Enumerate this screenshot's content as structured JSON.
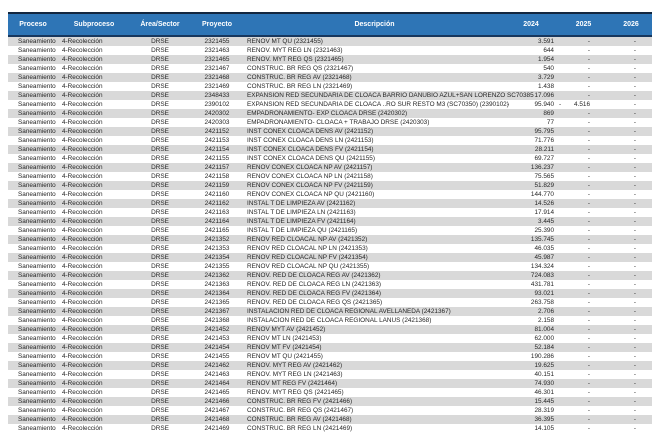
{
  "colors": {
    "header_bg": "#2E75B6",
    "header_text": "#FFFFFF",
    "stripe": "#D9D9D9",
    "row_text": "#262626",
    "top_border": "#12263F",
    "header_bottom_border": "#17375E"
  },
  "table": {
    "columns": {
      "proceso": "Proceso",
      "subproceso": "Subproceso",
      "area": "Área/Sector",
      "proyecto": "Proyecto",
      "descripcion": "Descripción",
      "y2024": "2024",
      "y2025": "2025",
      "y2026": "2026"
    },
    "rows": [
      {
        "proceso": "Saneamiento",
        "subproceso": "4-Recolección",
        "area": "DRSE",
        "proyecto": "2321455",
        "descripcion": "RENOV MT  QU (2321455)",
        "y2024": "3.591",
        "y2025": "-",
        "y2026": "-"
      },
      {
        "proceso": "Saneamiento",
        "subproceso": "4-Recolección",
        "area": "DRSE",
        "proyecto": "2321463",
        "descripcion": "RENOV. MYT REG LN (2321463)",
        "y2024": "644",
        "y2025": "-",
        "y2026": "-"
      },
      {
        "proceso": "Saneamiento",
        "subproceso": "4-Recolección",
        "area": "DRSE",
        "proyecto": "2321465",
        "descripcion": "RENOV. MYT REG QS (2321465)",
        "y2024": "1.954",
        "y2025": "-",
        "y2026": "-"
      },
      {
        "proceso": "Saneamiento",
        "subproceso": "4-Recolección",
        "area": "DRSE",
        "proyecto": "2321467",
        "descripcion": "CONSTRUC. BR REG QS (2321467)",
        "y2024": "540",
        "y2025": "-",
        "y2026": "-"
      },
      {
        "proceso": "Saneamiento",
        "subproceso": "4-Recolección",
        "area": "DRSE",
        "proyecto": "2321468",
        "descripcion": "CONSTRUC. BR REG AV (2321468)",
        "y2024": "3.729",
        "y2025": "-",
        "y2026": "-"
      },
      {
        "proceso": "Saneamiento",
        "subproceso": "4-Recolección",
        "area": "DRSE",
        "proyecto": "2321469",
        "descripcion": "CONSTRUC. BR REG LN (2321469)",
        "y2024": "1.438",
        "y2025": "-",
        "y2026": "-"
      },
      {
        "proceso": "Saneamiento",
        "subproceso": "4-Recolección",
        "area": "DRSE",
        "proyecto": "2348433",
        "descripcion": "EXPANSION RED SECUNDARIA DE CLOACA BARRIO DANUBIO AZUL+SAN LORENZO SC70385",
        "y2024": "17.096",
        "y2025": "-",
        "y2026": "-"
      },
      {
        "proceso": "Saneamiento",
        "subproceso": "4-Recolección",
        "area": "DRSE",
        "proyecto": "2390102",
        "descripcion": "EXPANSION RED SECUNDARIA DE CLOACA ..RO SUR RESTO M3 (SC70350) (2390102)",
        "y2024": "95.940",
        "neg2024": true,
        "y2025": "4.516",
        "neg2025": true,
        "y2026": "-"
      },
      {
        "proceso": "Saneamiento",
        "subproceso": "4-Recolección",
        "area": "DRSE",
        "proyecto": "2420302",
        "descripcion": "EMPADRONAMIENTO- EXP CLOACA DRSE (2420302)",
        "y2024": "869",
        "y2025": "-",
        "y2026": "-"
      },
      {
        "proceso": "Saneamiento",
        "subproceso": "4-Recolección",
        "area": "DRSE",
        "proyecto": "2420303",
        "descripcion": "EMPADRONAMIENTO- CLOACA + TRABAJO DRSE (2420303)",
        "y2024": "77",
        "y2025": "-",
        "y2026": "-"
      },
      {
        "proceso": "Saneamiento",
        "subproceso": "4-Recolección",
        "area": "DRSE",
        "proyecto": "2421152",
        "descripcion": "INST CONEX CLOACA DENS  AV (2421152)",
        "y2024": "95.795",
        "y2025": "-",
        "y2026": "-"
      },
      {
        "proceso": "Saneamiento",
        "subproceso": "4-Recolección",
        "area": "DRSE",
        "proyecto": "2421153",
        "descripcion": "INST CONEX CLOACA DENS  LN (2421153)",
        "y2024": "71.776",
        "y2025": "-",
        "y2026": "-"
      },
      {
        "proceso": "Saneamiento",
        "subproceso": "4-Recolección",
        "area": "DRSE",
        "proyecto": "2421154",
        "descripcion": "INST CONEX CLOACA DENS  FV (2421154)",
        "y2024": "28.211",
        "y2025": "-",
        "y2026": "-"
      },
      {
        "proceso": "Saneamiento",
        "subproceso": "4-Recolección",
        "area": "DRSE",
        "proyecto": "2421155",
        "descripcion": "INST CONEX CLOACA DENS  QU (2421155)",
        "y2024": "69.727",
        "y2025": "-",
        "y2026": "-"
      },
      {
        "proceso": "Saneamiento",
        "subproceso": "4-Recolección",
        "area": "DRSE",
        "proyecto": "2421157",
        "descripcion": "RENOV CONEX CLOACA NP  AV (2421157)",
        "y2024": "136.237",
        "y2025": "-",
        "y2026": "-"
      },
      {
        "proceso": "Saneamiento",
        "subproceso": "4-Recolección",
        "area": "DRSE",
        "proyecto": "2421158",
        "descripcion": "RENOV CONEX CLOACA NP  LN (2421158)",
        "y2024": "75.565",
        "y2025": "-",
        "y2026": "-"
      },
      {
        "proceso": "Saneamiento",
        "subproceso": "4-Recolección",
        "area": "DRSE",
        "proyecto": "2421159",
        "descripcion": "RENOV CONEX CLOACA NP  FV (2421159)",
        "y2024": "51.829",
        "y2025": "-",
        "y2026": "-"
      },
      {
        "proceso": "Saneamiento",
        "subproceso": "4-Recolección",
        "area": "DRSE",
        "proyecto": "2421160",
        "descripcion": "RENOV CONEX CLOACA NP  QU (2421160)",
        "y2024": "144.770",
        "y2025": "-",
        "y2026": "-"
      },
      {
        "proceso": "Saneamiento",
        "subproceso": "4-Recolección",
        "area": "DRSE",
        "proyecto": "2421162",
        "descripcion": "INSTAL T  DE LIMPIEZA  AV (2421162)",
        "y2024": "14.526",
        "y2025": "-",
        "y2026": "-"
      },
      {
        "proceso": "Saneamiento",
        "subproceso": "4-Recolección",
        "area": "DRSE",
        "proyecto": "2421163",
        "descripcion": "INSTAL T  DE LIMPIEZA  LN (2421163)",
        "y2024": "17.914",
        "y2025": "-",
        "y2026": "-"
      },
      {
        "proceso": "Saneamiento",
        "subproceso": "4-Recolección",
        "area": "DRSE",
        "proyecto": "2421164",
        "descripcion": "INSTAL T  DE LIMPIEZA  FV (2421164)",
        "y2024": "3.445",
        "y2025": "-",
        "y2026": "-"
      },
      {
        "proceso": "Saneamiento",
        "subproceso": "4-Recolección",
        "area": "DRSE",
        "proyecto": "2421165",
        "descripcion": "INSTAL T  DE LIMPIEZA  QU (2421165)",
        "y2024": "25.390",
        "y2025": "-",
        "y2026": "-"
      },
      {
        "proceso": "Saneamiento",
        "subproceso": "4-Recolección",
        "area": "DRSE",
        "proyecto": "2421352",
        "descripcion": "RENOV RED CLOACAL NP AV (2421352)",
        "y2024": "135.745",
        "y2025": "-",
        "y2026": "-"
      },
      {
        "proceso": "Saneamiento",
        "subproceso": "4-Recolección",
        "area": "DRSE",
        "proyecto": "2421353",
        "descripcion": "RENOV RED CLOACAL NP LN (2421353)",
        "y2024": "46.035",
        "y2025": "-",
        "y2026": "-"
      },
      {
        "proceso": "Saneamiento",
        "subproceso": "4-Recolección",
        "area": "DRSE",
        "proyecto": "2421354",
        "descripcion": "RENOV RED CLOACAL NP  FV (2421354)",
        "y2024": "45.987",
        "y2025": "-",
        "y2026": "-"
      },
      {
        "proceso": "Saneamiento",
        "subproceso": "4-Recolección",
        "area": "DRSE",
        "proyecto": "2421355",
        "descripcion": "RENOV RED CLOACAL NP QU (2421355)",
        "y2024": "134.324",
        "y2025": "-",
        "y2026": "-"
      },
      {
        "proceso": "Saneamiento",
        "subproceso": "4-Recolección",
        "area": "DRSE",
        "proyecto": "2421362",
        "descripcion": "RENOV. RED DE CLOACA REG AV (2421362)",
        "y2024": "724.083",
        "y2025": "-",
        "y2026": "-"
      },
      {
        "proceso": "Saneamiento",
        "subproceso": "4-Recolección",
        "area": "DRSE",
        "proyecto": "2421363",
        "descripcion": "RENOV. RED DE CLOACA REG LN (2421363)",
        "y2024": "431.781",
        "y2025": "-",
        "y2026": "-"
      },
      {
        "proceso": "Saneamiento",
        "subproceso": "4-Recolección",
        "area": "DRSE",
        "proyecto": "2421364",
        "descripcion": "RENOV. RED DE CLOACA REG  FV (2421364)",
        "y2024": "93.021",
        "y2025": "-",
        "y2026": "-"
      },
      {
        "proceso": "Saneamiento",
        "subproceso": "4-Recolección",
        "area": "DRSE",
        "proyecto": "2421365",
        "descripcion": "RENOV. RED DE CLOACA REG QS (2421365)",
        "y2024": "263.758",
        "y2025": "-",
        "y2026": "-"
      },
      {
        "proceso": "Saneamiento",
        "subproceso": "4-Recolección",
        "area": "DRSE",
        "proyecto": "2421367",
        "descripcion": "INSTALACION RED DE CLOACA REGIONAL AVELLANEDA (2421367)",
        "y2024": "2.706",
        "y2025": "-",
        "y2026": "-"
      },
      {
        "proceso": "Saneamiento",
        "subproceso": "4-Recolección",
        "area": "DRSE",
        "proyecto": "2421368",
        "descripcion": "INSTALACION RED DE CLOACA REGIONAL LANUS (2421368)",
        "y2024": "2.158",
        "y2025": "-",
        "y2026": "-"
      },
      {
        "proceso": "Saneamiento",
        "subproceso": "4-Recolección",
        "area": "DRSE",
        "proyecto": "2421452",
        "descripcion": "RENOV MYT AV (2421452)",
        "y2024": "81.004",
        "y2025": "-",
        "y2026": "-"
      },
      {
        "proceso": "Saneamiento",
        "subproceso": "4-Recolección",
        "area": "DRSE",
        "proyecto": "2421453",
        "descripcion": "RENOV MT  LN (2421453)",
        "y2024": "62.000",
        "y2025": "-",
        "y2026": "-"
      },
      {
        "proceso": "Saneamiento",
        "subproceso": "4-Recolección",
        "area": "DRSE",
        "proyecto": "2421454",
        "descripcion": "RENOV MT  FV (2421454)",
        "y2024": "52.184",
        "y2025": "-",
        "y2026": "-"
      },
      {
        "proceso": "Saneamiento",
        "subproceso": "4-Recolección",
        "area": "DRSE",
        "proyecto": "2421455",
        "descripcion": "RENOV MT  QU (2421455)",
        "y2024": "190.286",
        "y2025": "-",
        "y2026": "-"
      },
      {
        "proceso": "Saneamiento",
        "subproceso": "4-Recolección",
        "area": "DRSE",
        "proyecto": "2421462",
        "descripcion": "RENOV. MYT REG AV (2421462)",
        "y2024": "19.625",
        "y2025": "-",
        "y2026": "-"
      },
      {
        "proceso": "Saneamiento",
        "subproceso": "4-Recolección",
        "area": "DRSE",
        "proyecto": "2421463",
        "descripcion": "RENOV. MYT REG LN (2421463)",
        "y2024": "40.151",
        "y2025": "-",
        "y2026": "-"
      },
      {
        "proceso": "Saneamiento",
        "subproceso": "4-Recolección",
        "area": "DRSE",
        "proyecto": "2421464",
        "descripcion": "RENOV MT REG FV (2421464)",
        "y2024": "74.930",
        "y2025": "-",
        "y2026": "-"
      },
      {
        "proceso": "Saneamiento",
        "subproceso": "4-Recolección",
        "area": "DRSE",
        "proyecto": "2421465",
        "descripcion": "RENOV. MYT REG QS (2421465)",
        "y2024": "46.301",
        "y2025": "-",
        "y2026": "-"
      },
      {
        "proceso": "Saneamiento",
        "subproceso": "4-Recolección",
        "area": "DRSE",
        "proyecto": "2421466",
        "descripcion": "CONSTRUC. BR REG FV (2421466)",
        "y2024": "15.445",
        "y2025": "-",
        "y2026": "-"
      },
      {
        "proceso": "Saneamiento",
        "subproceso": "4-Recolección",
        "area": "DRSE",
        "proyecto": "2421467",
        "descripcion": "CONSTRUC. BR REG QS (2421467)",
        "y2024": "28.319",
        "y2025": "-",
        "y2026": "-"
      },
      {
        "proceso": "Saneamiento",
        "subproceso": "4-Recolección",
        "area": "DRSE",
        "proyecto": "2421468",
        "descripcion": "CONSTRUC. BR REG AV (2421468)",
        "y2024": "36.395",
        "y2025": "-",
        "y2026": "-"
      },
      {
        "proceso": "Saneamiento",
        "subproceso": "4-Recolección",
        "area": "DRSE",
        "proyecto": "2421469",
        "descripcion": "CONSTRUC. BR REG LN (2421469)",
        "y2024": "14.105",
        "y2025": "-",
        "y2026": "-"
      }
    ]
  }
}
